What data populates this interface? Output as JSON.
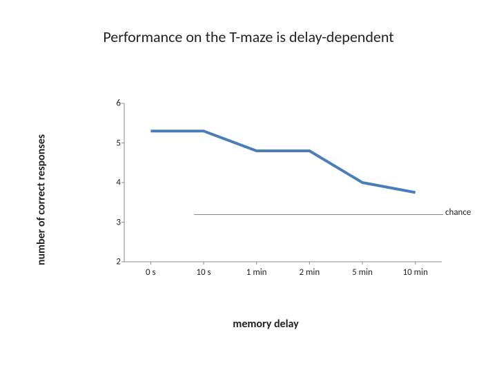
{
  "title": "Performance on the T-maze is delay-dependent",
  "title_fontsize": 22,
  "chart": {
    "type": "line",
    "ylabel": "number of correct responses",
    "xlabel": "memory delay",
    "label_fontsize": 16,
    "tick_fontsize": 13,
    "categories": [
      "0 s",
      "10 s",
      "1 min",
      "2 min",
      "5 min",
      "10 min"
    ],
    "values": [
      5.3,
      5.3,
      4.8,
      4.8,
      4.0,
      3.75
    ],
    "ylim": [
      2,
      6
    ],
    "ytick_step": 1,
    "line_color": "#4a7ebb",
    "line_width": 4,
    "axis_color": "#888888",
    "axis_width": 1,
    "tick_len": 4,
    "background_color": "#ffffff",
    "legend": {
      "label": "chance",
      "fontsize": 13,
      "line_color": "#888888"
    }
  }
}
